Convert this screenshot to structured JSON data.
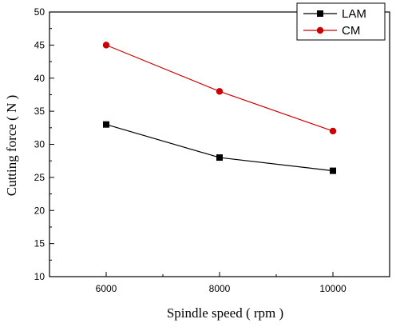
{
  "chart_data": {
    "type": "line",
    "title": "",
    "xlabel": "Spindle speed ( rpm )",
    "ylabel": "Cutting force ( N )",
    "x": [
      6000,
      8000,
      10000
    ],
    "x_tick_labels": [
      "6000",
      "8000",
      "10000"
    ],
    "xlim": [
      5000,
      11000
    ],
    "ylim": [
      10,
      50
    ],
    "y_ticks": [
      10,
      15,
      20,
      25,
      30,
      35,
      40,
      45,
      50
    ],
    "y_tick_labels": [
      "10",
      "15",
      "20",
      "25",
      "30",
      "35",
      "40",
      "45",
      "50"
    ],
    "grid": false,
    "legend_position": "top-right",
    "series": [
      {
        "name": "LAM",
        "values": [
          33,
          28,
          26
        ],
        "color": "#000000",
        "marker": "square"
      },
      {
        "name": "CM",
        "values": [
          45,
          38,
          32
        ],
        "color": "#cc0000",
        "marker": "circle"
      }
    ]
  }
}
